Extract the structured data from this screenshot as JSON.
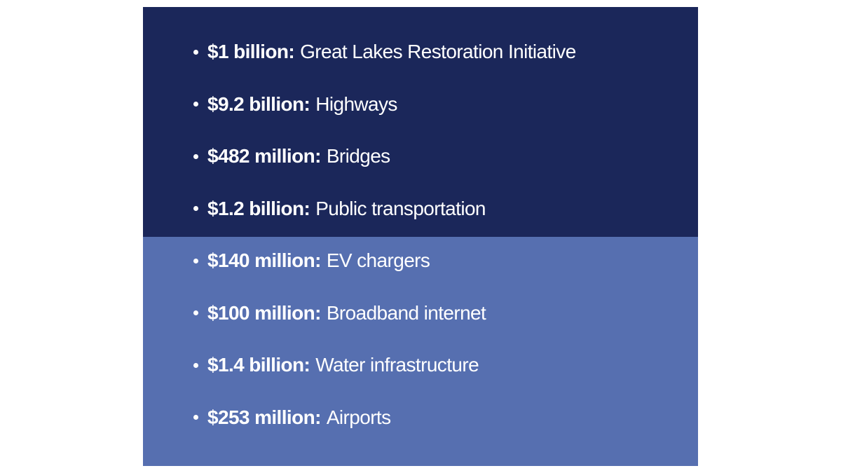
{
  "sections": [
    {
      "items": [
        {
          "amount": "$1 billion:",
          "label": "Great Lakes Restoration Initiative"
        },
        {
          "amount": "$9.2 billion:",
          "label": "Highways"
        },
        {
          "amount": "$482 million:",
          "label": "Bridges"
        },
        {
          "amount": "$1.2 billion:",
          "label": "Public transportation"
        }
      ]
    },
    {
      "items": [
        {
          "amount": "$140 million:",
          "label": "EV chargers"
        },
        {
          "amount": "$100 million:",
          "label": "Broadband internet"
        },
        {
          "amount": "$1.4 billion:",
          "label": "Water infrastructure"
        },
        {
          "amount": "$253 million:",
          "label": "Airports"
        }
      ]
    }
  ]
}
